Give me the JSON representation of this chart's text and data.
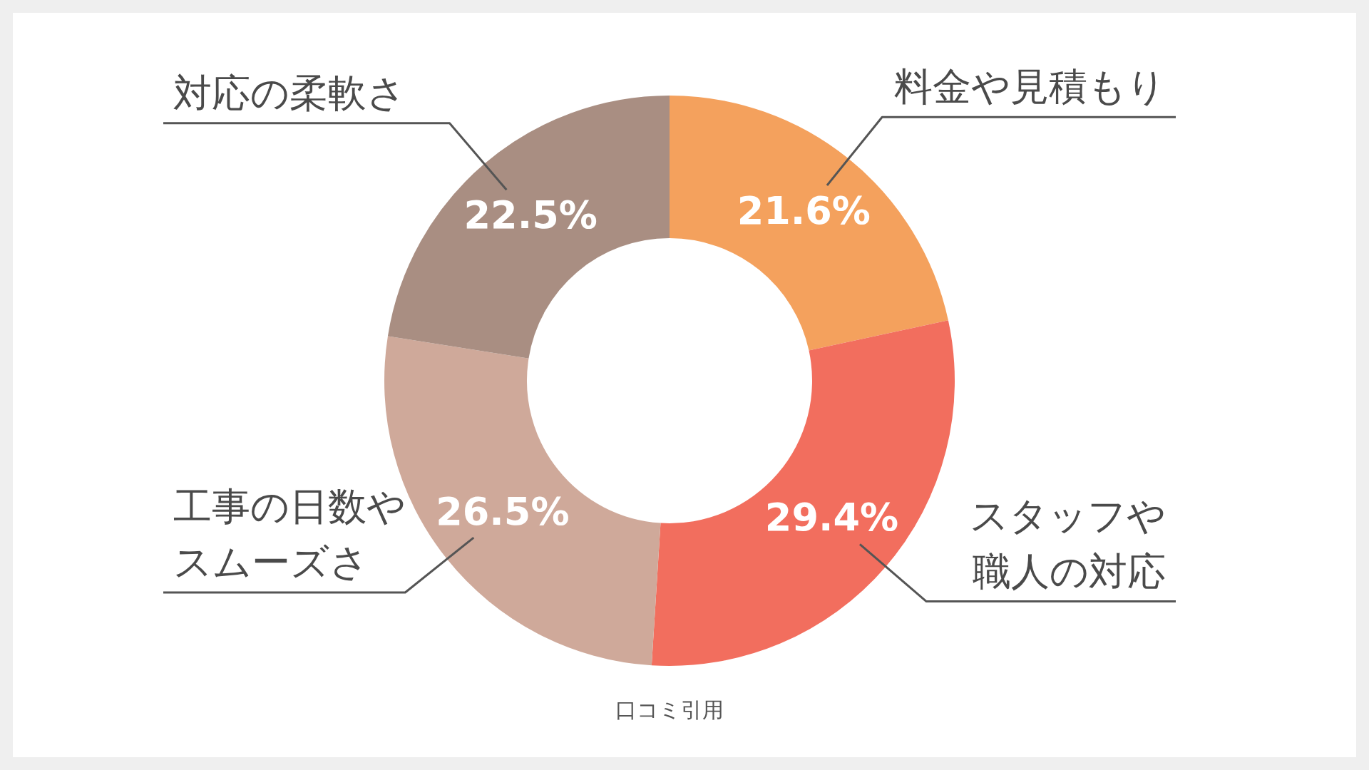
{
  "chart_data": {
    "type": "donut",
    "categories": [
      "料金や見積もり",
      "スタッフや職人の対応",
      "工事の日数やスムーズさ",
      "対応の柔軟さ"
    ],
    "values": [
      21.6,
      29.4,
      26.5,
      22.5
    ],
    "value_labels": [
      "21.6%",
      "29.4%",
      "26.5%",
      "22.5%"
    ],
    "colors": [
      "#f4a15d",
      "#f26e5e",
      "#cfa99a",
      "#a98e82"
    ],
    "annotations": [
      "口コミ引用"
    ],
    "legend": false
  }
}
